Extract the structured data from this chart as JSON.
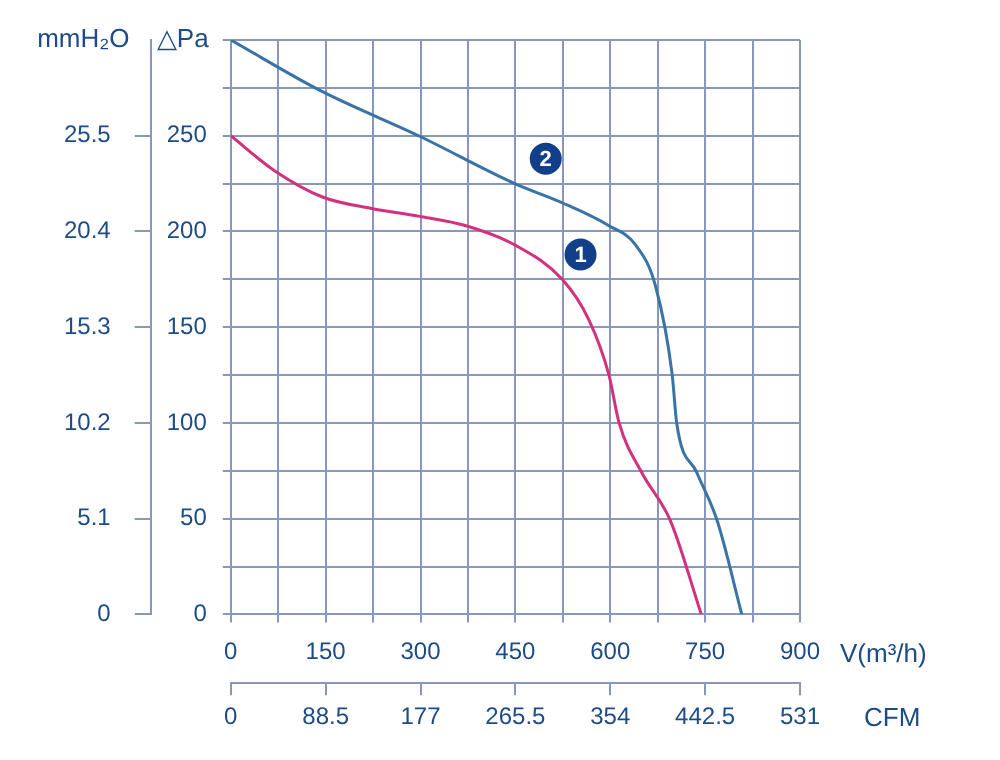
{
  "chart_data": {
    "type": "line",
    "xlabel": "V(m³/h)",
    "ylabel": "△Pa",
    "y2label": "mmH₂O",
    "x2label": "CFM",
    "xlim": [
      0,
      900
    ],
    "xticks": [
      0,
      {
        "value": 75,
        "label": null
      },
      150,
      {
        "value": 225,
        "label": null
      },
      300,
      {
        "value": 375,
        "label": null
      },
      450,
      {
        "value": 525,
        "label": null
      },
      600,
      {
        "value": 675,
        "label": null
      },
      750,
      {
        "value": 825,
        "label": null
      },
      900
    ],
    "ylim": [
      0,
      300
    ],
    "yticks": [
      0,
      {
        "value": 25,
        "label": null
      },
      50,
      {
        "value": 75,
        "label": null
      },
      100,
      {
        "value": 125,
        "label": null
      },
      150,
      {
        "value": 175,
        "label": null
      },
      200,
      {
        "value": 225,
        "label": null
      },
      250,
      {
        "value": 275,
        "label": null
      },
      {
        "value": 300,
        "label": null
      }
    ],
    "y2lim": [
      0,
      30.6
    ],
    "y2ticks": [
      0,
      5.1,
      10.2,
      15.3,
      20.4,
      25.5
    ],
    "x2lim": [
      0,
      531
    ],
    "x2ticks": [
      0,
      88.5,
      177,
      265.5,
      354,
      442.5,
      531
    ],
    "series": [
      {
        "color": "#d3307e",
        "x": [
          0,
          68,
          145,
          223,
          297,
          372,
          449,
          524,
          566,
          598,
          614,
          650,
          695,
          744
        ],
        "values": [
          250,
          232,
          218,
          212,
          208,
          203,
          193,
          175,
          154,
          125,
          100,
          74,
          49,
          0
        ]
      },
      {
        "color": "#3a74a6",
        "x": [
          0,
          145,
          297,
          449,
          524,
          598,
          640,
          672,
          698,
          705,
          737,
          769,
          808
        ],
        "values": [
          300,
          273,
          250,
          225,
          215,
          203,
          193,
          171,
          125,
          100,
          74,
          49,
          0
        ]
      }
    ],
    "annotations": [
      {
        "text": "2",
        "x": 498,
        "y": 238
      },
      {
        "text": "1",
        "x": 553,
        "y": 188
      }
    ],
    "grid": true,
    "legend": false,
    "marker": "none",
    "line_style": "solid"
  }
}
